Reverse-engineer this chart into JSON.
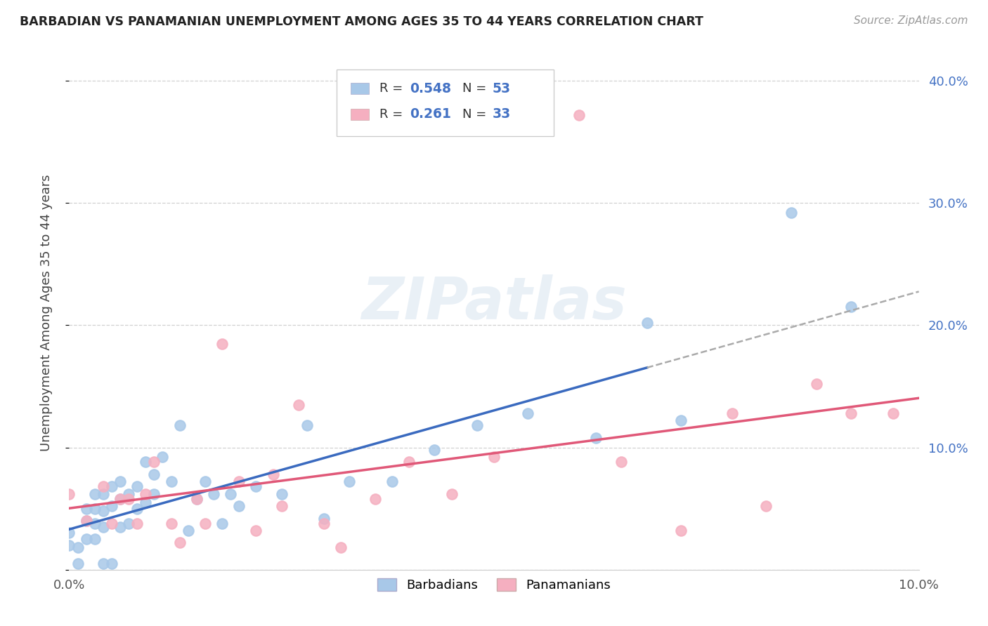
{
  "title": "BARBADIAN VS PANAMANIAN UNEMPLOYMENT AMONG AGES 35 TO 44 YEARS CORRELATION CHART",
  "source": "Source: ZipAtlas.com",
  "ylabel": "Unemployment Among Ages 35 to 44 years",
  "xlim": [
    0.0,
    0.1
  ],
  "ylim": [
    0.0,
    0.42
  ],
  "barbadian_R": 0.548,
  "barbadian_N": 53,
  "panamanian_R": 0.261,
  "panamanian_N": 33,
  "barbadian_color": "#a8c8e8",
  "panamanian_color": "#f5afc0",
  "barbadian_line_color": "#3a6abf",
  "panamanian_line_color": "#e05878",
  "watermark_text": "ZIPatlas",
  "barbadian_x": [
    0.0,
    0.0,
    0.001,
    0.001,
    0.002,
    0.002,
    0.002,
    0.003,
    0.003,
    0.003,
    0.003,
    0.004,
    0.004,
    0.004,
    0.004,
    0.005,
    0.005,
    0.005,
    0.006,
    0.006,
    0.006,
    0.007,
    0.007,
    0.008,
    0.008,
    0.009,
    0.009,
    0.01,
    0.01,
    0.011,
    0.012,
    0.013,
    0.014,
    0.015,
    0.016,
    0.017,
    0.018,
    0.019,
    0.02,
    0.022,
    0.025,
    0.028,
    0.03,
    0.033,
    0.038,
    0.043,
    0.048,
    0.054,
    0.062,
    0.068,
    0.072,
    0.085,
    0.092
  ],
  "barbadian_y": [
    0.02,
    0.03,
    0.005,
    0.018,
    0.025,
    0.04,
    0.05,
    0.025,
    0.038,
    0.05,
    0.062,
    0.005,
    0.035,
    0.048,
    0.062,
    0.005,
    0.052,
    0.068,
    0.035,
    0.058,
    0.072,
    0.038,
    0.062,
    0.05,
    0.068,
    0.055,
    0.088,
    0.062,
    0.078,
    0.092,
    0.072,
    0.118,
    0.032,
    0.058,
    0.072,
    0.062,
    0.038,
    0.062,
    0.052,
    0.068,
    0.062,
    0.118,
    0.042,
    0.072,
    0.072,
    0.098,
    0.118,
    0.128,
    0.108,
    0.202,
    0.122,
    0.292,
    0.215
  ],
  "panamanian_x": [
    0.0,
    0.002,
    0.004,
    0.005,
    0.006,
    0.007,
    0.008,
    0.009,
    0.01,
    0.012,
    0.013,
    0.015,
    0.016,
    0.018,
    0.02,
    0.022,
    0.024,
    0.025,
    0.027,
    0.03,
    0.032,
    0.036,
    0.04,
    0.045,
    0.05,
    0.06,
    0.065,
    0.072,
    0.078,
    0.082,
    0.088,
    0.092,
    0.097
  ],
  "panamanian_y": [
    0.062,
    0.04,
    0.068,
    0.038,
    0.058,
    0.058,
    0.038,
    0.062,
    0.088,
    0.038,
    0.022,
    0.058,
    0.038,
    0.185,
    0.072,
    0.032,
    0.078,
    0.052,
    0.135,
    0.038,
    0.018,
    0.058,
    0.088,
    0.062,
    0.092,
    0.372,
    0.088,
    0.032,
    0.128,
    0.052,
    0.152,
    0.128,
    0.128
  ]
}
